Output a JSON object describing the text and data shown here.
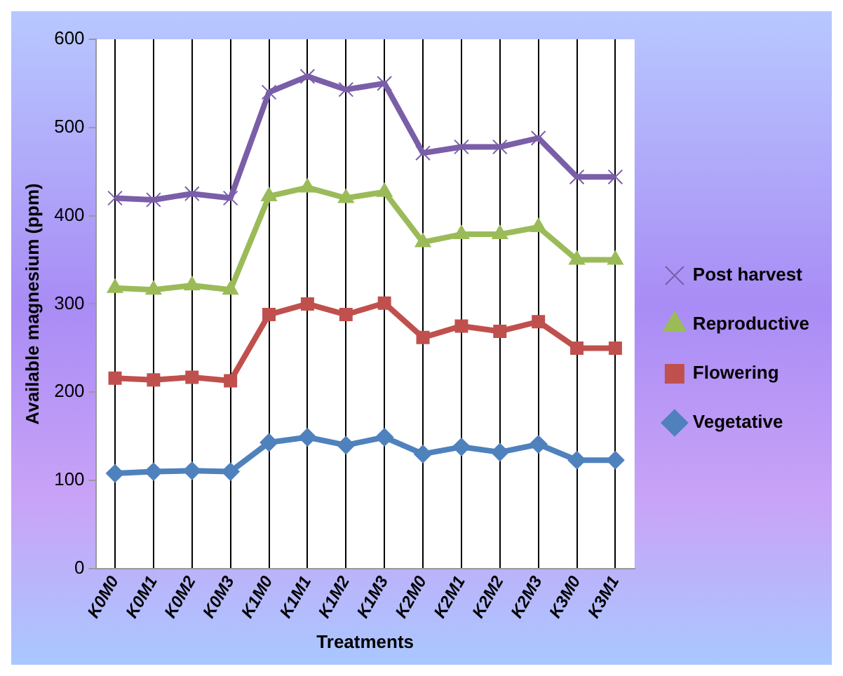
{
  "chart_data": {
    "type": "line",
    "xlabel": "Treatments",
    "ylabel": "Available magnesium (ppm)",
    "categories": [
      "K0M0",
      "K0M1",
      "K0M2",
      "K0M3",
      "K1M0",
      "K1M1",
      "K1M2",
      "K1M3",
      "K2M0",
      "K2M1",
      "K2M2",
      "K2M3",
      "K3M0",
      "K3M1"
    ],
    "series": [
      {
        "name": "Post harvest",
        "color": "#7a5ea8",
        "marker": "cross",
        "values": [
          420,
          418,
          425,
          420,
          540,
          558,
          543,
          550,
          471,
          478,
          478,
          488,
          444,
          444
        ]
      },
      {
        "name": "Reproductive",
        "color": "#9bbb59",
        "marker": "triangle",
        "values": [
          318,
          316,
          321,
          316,
          422,
          432,
          420,
          427,
          370,
          379,
          379,
          387,
          350,
          350
        ]
      },
      {
        "name": "Flowering",
        "color": "#c0504d",
        "marker": "square",
        "values": [
          216,
          214,
          217,
          213,
          288,
          300,
          288,
          301,
          262,
          275,
          269,
          280,
          250,
          250
        ]
      },
      {
        "name": "Vegetative",
        "color": "#4f81bd",
        "marker": "diamond",
        "values": [
          108,
          110,
          111,
          110,
          143,
          149,
          140,
          149,
          130,
          138,
          132,
          141,
          123,
          123
        ]
      }
    ],
    "ylim": [
      0,
      600
    ],
    "yticks": [
      0,
      100,
      200,
      300,
      400,
      500,
      600
    ],
    "grid": "x",
    "legend": "right",
    "line_style": "solid"
  }
}
